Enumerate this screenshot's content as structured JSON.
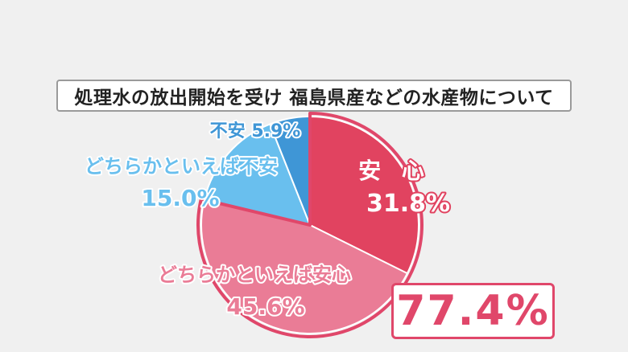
{
  "title": "処理水の放出開始を受け 福島県産などの水産物について",
  "highlight": "77.4%",
  "colors": {
    "anshin": "#e14360",
    "dochira_anshin": "#ea7c96",
    "dochira_fuan": "#69bfee",
    "fuan": "#3f96d6",
    "outline": "#e0476a",
    "highlight": "#e0476a"
  },
  "chart_data": {
    "type": "pie",
    "title": "処理水の放出開始を受け 福島県産などの水産物について",
    "slices": [
      {
        "label": "安 心",
        "value": 31.8,
        "value_label": "31.8%"
      },
      {
        "label": "どちらかといえば安心",
        "value": 45.6,
        "value_label": "45.6%"
      },
      {
        "label": "どちらかといえば不安",
        "value": 15.0,
        "value_label": "15.0%"
      },
      {
        "label": "不安",
        "value": 5.9,
        "value_label": "5.9%"
      }
    ],
    "start": "12 o'clock",
    "direction": "clockwise",
    "grouped_total": {
      "slices": [
        "安 心",
        "どちらかといえば安心"
      ],
      "value": 77.4,
      "label": "77.4%"
    }
  }
}
